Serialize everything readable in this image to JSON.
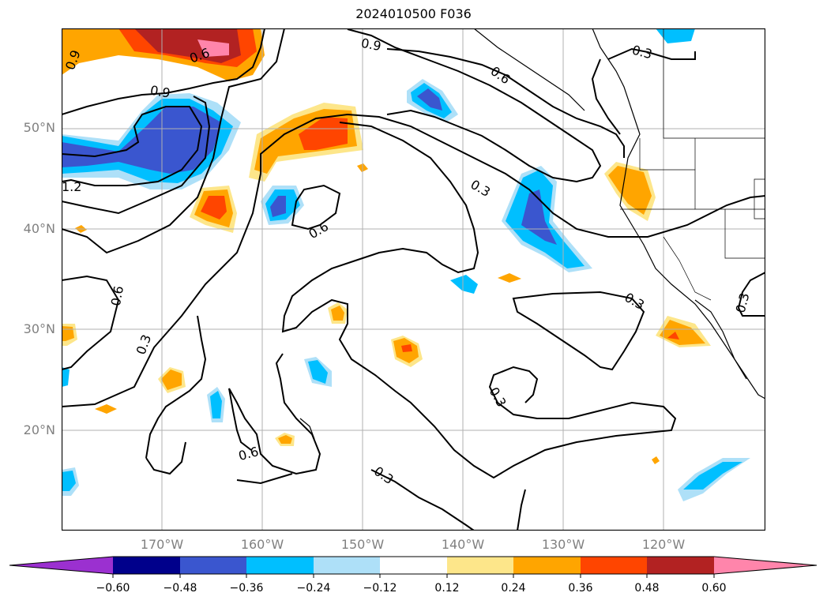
{
  "title": "2024010500 F036",
  "map": {
    "lat_labels": [
      "50°N",
      "40°N",
      "30°N",
      "20°N"
    ],
    "lon_labels": [
      "170°W",
      "160°W",
      "150°W",
      "140°W",
      "130°W",
      "120°W"
    ],
    "contour_labels": [
      "0.9",
      "0.6",
      "0.9",
      "0.3",
      "0.6",
      "0.9",
      "1.2",
      "0.3",
      "0.6",
      "0.6",
      "0.3",
      "0.3",
      "0.3",
      "0.3",
      "0.6",
      "0.3"
    ]
  },
  "colorbar": {
    "ticks": [
      "−0.60",
      "−0.48",
      "−0.36",
      "−0.24",
      "−0.12",
      "0.12",
      "0.24",
      "0.36",
      "0.48",
      "0.60"
    ],
    "colors": [
      "#9b30d0",
      "#00008b",
      "#3a56cf",
      "#00bfff",
      "#aee0f8",
      "#ffffff",
      "#fde68a",
      "#ffa500",
      "#ff4500",
      "#b22222",
      "#ff85ab"
    ]
  }
}
